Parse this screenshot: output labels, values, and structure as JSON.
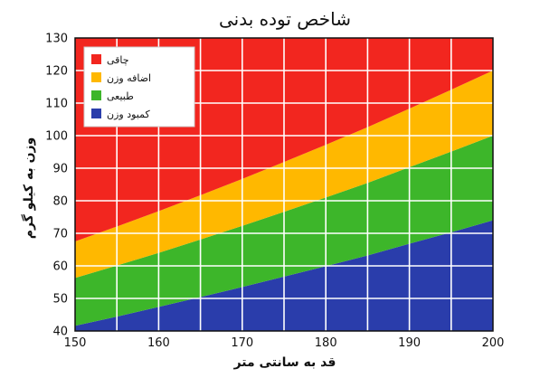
{
  "chart_data": {
    "type": "area",
    "title": "شاخص توده بدنی",
    "xlabel": "قد به سانتی متر",
    "ylabel": "وزن به کیلو گرم",
    "xlim": [
      150,
      200
    ],
    "ylim": [
      40,
      130
    ],
    "x_ticks": [
      150,
      160,
      170,
      180,
      190,
      200
    ],
    "y_ticks": [
      40,
      50,
      60,
      70,
      80,
      90,
      100,
      110,
      120,
      130
    ],
    "grid": true,
    "legend_position": "top-left",
    "x": [
      150,
      155,
      160,
      165,
      170,
      175,
      180,
      185,
      190,
      195,
      200
    ],
    "series": [
      {
        "name": "کمبود وزن",
        "color": "#2a3dab",
        "values": [
          41.6,
          44.4,
          47.4,
          50.4,
          53.5,
          56.7,
          59.9,
          63.2,
          66.8,
          70.3,
          74.0
        ]
      },
      {
        "name": "طبیعی",
        "color": "#3db62a",
        "values": [
          56.3,
          60.1,
          64.0,
          68.1,
          72.3,
          76.6,
          81.0,
          85.5,
          90.3,
          95.1,
          100.0
        ]
      },
      {
        "name": "اضافه وزن",
        "color": "#ffb800",
        "values": [
          67.5,
          72.1,
          76.8,
          81.7,
          86.7,
          91.9,
          97.2,
          102.6,
          108.3,
          114.1,
          120.0
        ]
      },
      {
        "name": "چاقی",
        "color": "#f2261f",
        "values": [
          130,
          130,
          130,
          130,
          130,
          130,
          130,
          130,
          130,
          130,
          130
        ]
      }
    ],
    "legend_order": [
      "چاقی",
      "اضافه وزن",
      "طبیعی",
      "کمبود وزن"
    ]
  }
}
